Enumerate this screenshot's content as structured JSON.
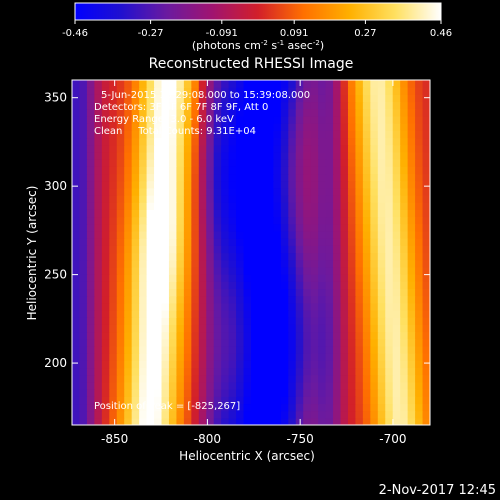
{
  "chart_data": {
    "type": "heatmap",
    "title": "Reconstructed RHESSI Image",
    "xlabel": "Heliocentric X (arcsec)",
    "ylabel": "Heliocentric Y (arcsec)",
    "xlim": [
      -873,
      -680
    ],
    "ylim": [
      165,
      360
    ],
    "x_ticks": [
      -850,
      -800,
      -750,
      -700
    ],
    "y_ticks": [
      200,
      250,
      300,
      350
    ],
    "colorbar": {
      "label_html": "(photons cm<sup>-2</sup> s<sup>-1</sup> asec<sup>-2</sup>)",
      "range": [
        -0.46,
        0.46
      ],
      "ticks": [
        -0.46,
        -0.27,
        -0.091,
        0.091,
        0.27,
        0.46
      ],
      "tick_labels": [
        "-0.46",
        "-0.27",
        "-0.091",
        "0.091",
        "0.27",
        "0.46"
      ],
      "colors": [
        "#0000ff",
        "#2010d0",
        "#6a1aa0",
        "#a01470",
        "#d21f2a",
        "#ff7000",
        "#ffb000",
        "#ffe060",
        "#ffffff"
      ]
    },
    "peak": [
      -825,
      267
    ],
    "annotations": [
      "5-Jun-2015 15:29:08.000 to 15:39:08.000",
      "Detectors: 3F 4F 6F 7F 8F 9F, Att 0",
      "Energy Range: 3.0 - 6.0 keV",
      "Clean     Total Counts: 9.31E+04"
    ],
    "peak_label": "Position of Peak = [-825,267]"
  },
  "footer": {
    "timestamp": "2-Nov-2017 12:45"
  }
}
